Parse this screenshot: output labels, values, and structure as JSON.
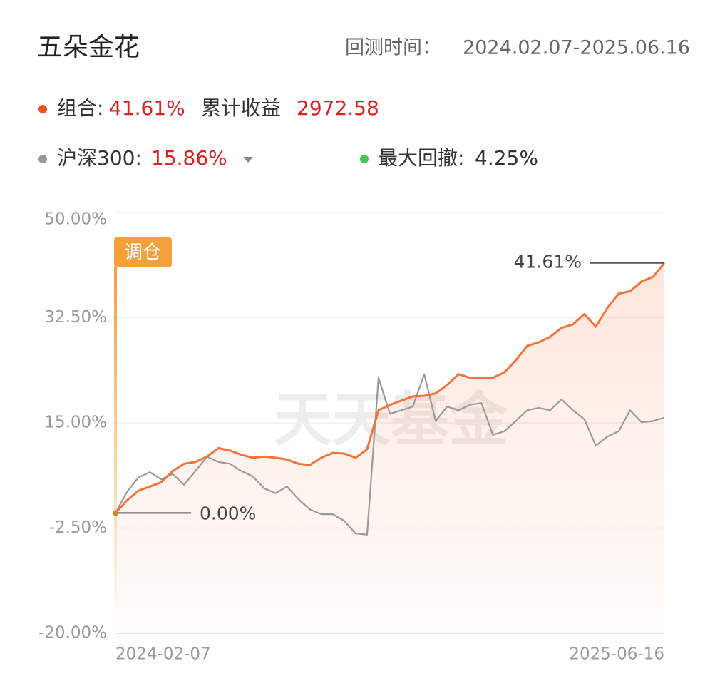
{
  "header": {
    "title": "五朵金花",
    "period_label": "回测时间：",
    "period": "2024.02.07-2025.06.16",
    "stats": [
      {
        "label": "组合:",
        "value": "41.61%"
      },
      {
        "label": "累计收益",
        "value": "2972.58"
      },
      {
        "label": "沪深300:",
        "value": "15.86%"
      },
      {
        "label": "最大回撤:",
        "value": "4.25%"
      }
    ]
  },
  "chart_data": {
    "type": "line",
    "watermark": "天天基金",
    "annotations": [
      "调仓",
      "41.61%",
      "0.00%"
    ],
    "categories": [
      "2024-02-07",
      null,
      null,
      null,
      null,
      null,
      null,
      null,
      null,
      null,
      null,
      null,
      null,
      null,
      null,
      null,
      null,
      null,
      null,
      null,
      null,
      null,
      null,
      null,
      null,
      null,
      null,
      null,
      null,
      null,
      null,
      null,
      null,
      null,
      null,
      null,
      null,
      null,
      null,
      null,
      null,
      null,
      null,
      null,
      null,
      null,
      null,
      null,
      "2025-06-16"
    ],
    "series": [
      {
        "name": "组合:",
        "color": "#f4733a",
        "values": [
          0.0,
          2.1,
          3.7,
          4.4,
          5.1,
          7.0,
          8.2,
          8.5,
          9.4,
          10.8,
          10.4,
          9.7,
          9.2,
          9.4,
          9.2,
          8.9,
          8.2,
          8.0,
          9.2,
          10.0,
          9.9,
          9.2,
          10.6,
          17.1,
          18.0,
          18.7,
          19.4,
          19.5,
          19.9,
          21.3,
          23.1,
          22.5,
          22.5,
          22.5,
          23.4,
          25.4,
          27.8,
          28.4,
          29.3,
          30.8,
          31.4,
          33.1,
          31.0,
          34.1,
          36.5,
          36.9,
          38.5,
          39.3,
          41.61
        ]
      },
      {
        "name": "沪深300:",
        "color": "#9a9a9a",
        "values": [
          0.0,
          3.5,
          5.9,
          6.8,
          5.6,
          6.5,
          4.7,
          7.0,
          9.4,
          8.5,
          8.2,
          7.0,
          6.1,
          4.1,
          3.3,
          4.4,
          2.3,
          0.6,
          -0.2,
          -0.2,
          -1.3,
          -3.4,
          -3.6,
          22.5,
          16.5,
          17.1,
          17.7,
          23.1,
          15.3,
          17.7,
          17.1,
          18.0,
          18.3,
          13.0,
          13.6,
          15.3,
          17.1,
          17.5,
          17.1,
          18.9,
          17.1,
          15.6,
          11.2,
          12.7,
          13.6,
          17.1,
          15.1,
          15.3,
          15.86
        ]
      }
    ],
    "ylim": [
      -20,
      50
    ],
    "yticks": [
      {
        "value": 50,
        "label": "50.00%"
      },
      {
        "value": 32.5,
        "label": "32.50%"
      },
      {
        "value": 15,
        "label": "15.00%"
      },
      {
        "value": -2.5,
        "label": "-2.50%"
      },
      {
        "value": -20,
        "label": "-20.00%"
      }
    ],
    "grid": true
  }
}
